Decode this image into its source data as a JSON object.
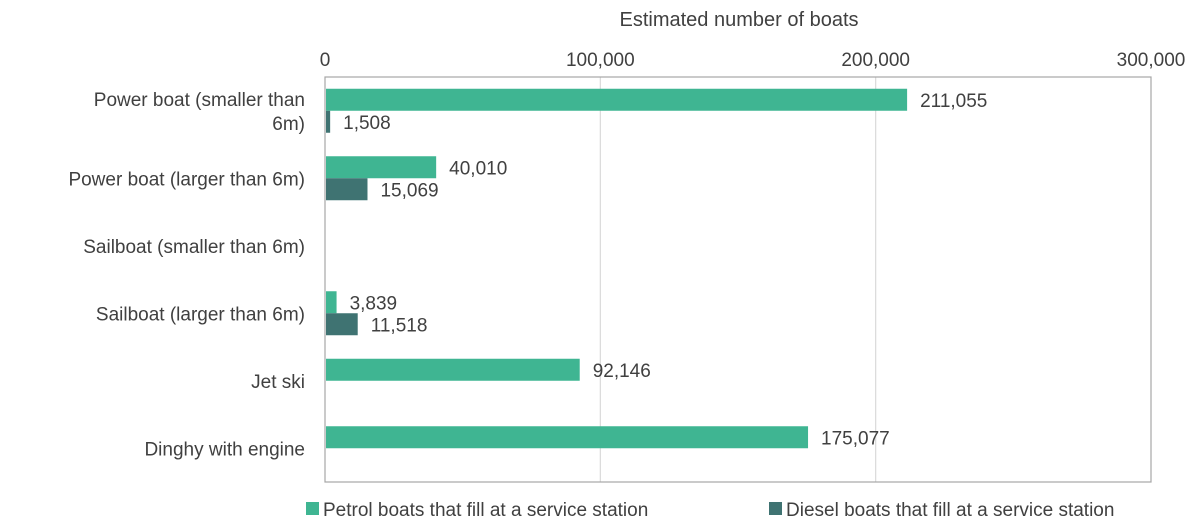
{
  "chart_data": {
    "type": "bar",
    "orientation": "horizontal",
    "xlabel": "Estimated number of boats",
    "xlim": [
      0,
      300000
    ],
    "ticks": [
      "0",
      "100,000",
      "200,000",
      "300,000"
    ],
    "tick_values": [
      0,
      100000,
      200000,
      300000
    ],
    "grid": true,
    "legend_position": "bottom",
    "categories": [
      [
        "Power boat (smaller than",
        "6m)"
      ],
      [
        "Power boat (larger than 6m)"
      ],
      [
        "Sailboat (smaller than 6m)"
      ],
      [
        "Sailboat (larger than 6m)"
      ],
      [
        "Jet ski"
      ],
      [
        "Dinghy with engine"
      ]
    ],
    "series": [
      {
        "name": "Petrol boats that fill at a service station",
        "color": "#3fb592",
        "values": [
          211055,
          40010,
          null,
          3839,
          92146,
          175077
        ],
        "labels": [
          "211,055",
          "40,010",
          "",
          "3,839",
          "92,146",
          "175,077"
        ]
      },
      {
        "name": "Diesel boats that fill at a service station",
        "color": "#3f7372",
        "values": [
          1508,
          15069,
          null,
          11518,
          null,
          null
        ],
        "labels": [
          "1,508",
          "15,069",
          "",
          "11,518",
          "",
          ""
        ]
      }
    ]
  }
}
